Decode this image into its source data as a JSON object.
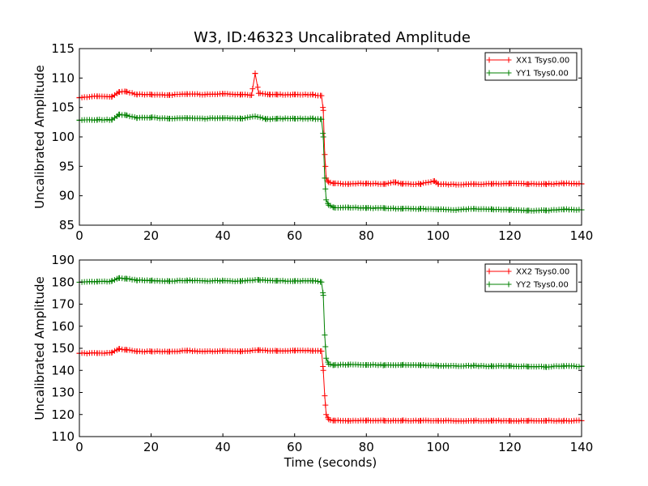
{
  "title": "W3, ID:46323 Uncalibrated Amplitude",
  "chart_data": [
    {
      "type": "line",
      "ylabel": "Uncalibrated Amplitude",
      "xlabel": "",
      "xlim": [
        0,
        140
      ],
      "ylim": [
        85,
        115
      ],
      "xticks": [
        "0",
        "20",
        "40",
        "60",
        "80",
        "100",
        "120",
        "140"
      ],
      "yticks": [
        "85",
        "90",
        "95",
        "100",
        "105",
        "110",
        "115"
      ],
      "legend_position": "top-right",
      "series": [
        {
          "name": "XX1 Tsys0.00",
          "color": "#ff0000",
          "level_before": 107.0,
          "level_after": 92.0,
          "step_time": 68,
          "points": [
            [
              0,
              106.7
            ],
            [
              5,
              106.9
            ],
            [
              9,
              106.8
            ],
            [
              11,
              107.6
            ],
            [
              13,
              107.7
            ],
            [
              16,
              107.2
            ],
            [
              20,
              107.2
            ],
            [
              25,
              107.1
            ],
            [
              30,
              107.3
            ],
            [
              35,
              107.2
            ],
            [
              40,
              107.3
            ],
            [
              45,
              107.2
            ],
            [
              48,
              107.1
            ],
            [
              49,
              110.8
            ],
            [
              50,
              107.4
            ],
            [
              53,
              107.2
            ],
            [
              55,
              107.2
            ],
            [
              60,
              107.2
            ],
            [
              65,
              107.2
            ],
            [
              67.5,
              107.0
            ],
            [
              68,
              104.5
            ],
            [
              68.4,
              97.0
            ],
            [
              68.8,
              93.0
            ],
            [
              69.5,
              92.3
            ],
            [
              71,
              92.1
            ],
            [
              75,
              92.0
            ],
            [
              80,
              92.1
            ],
            [
              85,
              92.0
            ],
            [
              88,
              92.3
            ],
            [
              90,
              92.0
            ],
            [
              95,
              92.0
            ],
            [
              99,
              92.5
            ],
            [
              100,
              92.0
            ],
            [
              105,
              91.9
            ],
            [
              110,
              92.0
            ],
            [
              115,
              92.0
            ],
            [
              120,
              92.1
            ],
            [
              125,
              92.0
            ],
            [
              130,
              92.0
            ],
            [
              135,
              92.1
            ],
            [
              140,
              92.0
            ]
          ]
        },
        {
          "name": "YY1 Tsys0.00",
          "color": "#008000",
          "level_before": 103.0,
          "level_after": 87.9,
          "step_time": 68,
          "points": [
            [
              0,
              102.8
            ],
            [
              5,
              102.9
            ],
            [
              9,
              102.9
            ],
            [
              11,
              103.8
            ],
            [
              13,
              103.7
            ],
            [
              16,
              103.2
            ],
            [
              20,
              103.3
            ],
            [
              25,
              103.1
            ],
            [
              30,
              103.2
            ],
            [
              35,
              103.1
            ],
            [
              40,
              103.2
            ],
            [
              45,
              103.1
            ],
            [
              49,
              103.5
            ],
            [
              52,
              103.0
            ],
            [
              55,
              103.1
            ],
            [
              60,
              103.1
            ],
            [
              65,
              103.1
            ],
            [
              67.5,
              103.0
            ],
            [
              68,
              100.0
            ],
            [
              68.4,
              93.0
            ],
            [
              68.8,
              89.3
            ],
            [
              69.5,
              88.4
            ],
            [
              71,
              88.0
            ],
            [
              75,
              88.0
            ],
            [
              80,
              87.9
            ],
            [
              85,
              87.9
            ],
            [
              90,
              87.8
            ],
            [
              95,
              87.8
            ],
            [
              100,
              87.7
            ],
            [
              105,
              87.6
            ],
            [
              110,
              87.8
            ],
            [
              115,
              87.7
            ],
            [
              120,
              87.6
            ],
            [
              125,
              87.5
            ],
            [
              130,
              87.5
            ],
            [
              135,
              87.7
            ],
            [
              140,
              87.6
            ]
          ]
        }
      ]
    },
    {
      "type": "line",
      "ylabel": "Uncalibrated Amplitude",
      "xlabel": "Time (seconds)",
      "xlim": [
        0,
        140
      ],
      "ylim": [
        110,
        190
      ],
      "xticks": [
        "0",
        "20",
        "40",
        "60",
        "80",
        "100",
        "120",
        "140"
      ],
      "yticks": [
        "110",
        "120",
        "130",
        "140",
        "150",
        "160",
        "170",
        "180",
        "190"
      ],
      "legend_position": "top-right",
      "series": [
        {
          "name": "XX2 Tsys0.00",
          "color": "#ff0000",
          "level_before": 148.9,
          "level_after": 117.2,
          "step_time": 68,
          "points": [
            [
              0,
              147.7
            ],
            [
              5,
              147.8
            ],
            [
              9,
              148.0
            ],
            [
              11,
              149.7
            ],
            [
              13,
              149.4
            ],
            [
              16,
              148.6
            ],
            [
              20,
              148.6
            ],
            [
              25,
              148.5
            ],
            [
              30,
              148.9
            ],
            [
              35,
              148.6
            ],
            [
              40,
              148.8
            ],
            [
              45,
              148.6
            ],
            [
              50,
              149.2
            ],
            [
              55,
              148.8
            ],
            [
              60,
              148.9
            ],
            [
              65,
              148.9
            ],
            [
              67.5,
              148.7
            ],
            [
              68,
              140.0
            ],
            [
              68.4,
              128.5
            ],
            [
              68.8,
              120.0
            ],
            [
              69.5,
              117.8
            ],
            [
              71,
              117.3
            ],
            [
              75,
              117.2
            ],
            [
              80,
              117.3
            ],
            [
              85,
              117.2
            ],
            [
              90,
              117.3
            ],
            [
              95,
              117.2
            ],
            [
              100,
              117.2
            ],
            [
              105,
              117.1
            ],
            [
              110,
              117.2
            ],
            [
              115,
              117.2
            ],
            [
              120,
              117.2
            ],
            [
              125,
              117.1
            ],
            [
              130,
              117.2
            ],
            [
              135,
              117.1
            ],
            [
              140,
              117.2
            ]
          ]
        },
        {
          "name": "YY2 Tsys0.00",
          "color": "#008000",
          "level_before": 180.6,
          "level_after": 142.0,
          "step_time": 68,
          "points": [
            [
              0,
              179.9
            ],
            [
              5,
              180.2
            ],
            [
              9,
              180.4
            ],
            [
              11,
              181.8
            ],
            [
              13,
              181.6
            ],
            [
              16,
              180.8
            ],
            [
              20,
              180.7
            ],
            [
              25,
              180.4
            ],
            [
              30,
              180.8
            ],
            [
              35,
              180.5
            ],
            [
              40,
              180.6
            ],
            [
              45,
              180.4
            ],
            [
              50,
              181.0
            ],
            [
              55,
              180.6
            ],
            [
              60,
              180.5
            ],
            [
              65,
              180.6
            ],
            [
              67.5,
              180.0
            ],
            [
              68,
              174.0
            ],
            [
              68.4,
              156.0
            ],
            [
              68.8,
              145.5
            ],
            [
              69.5,
              142.8
            ],
            [
              71,
              142.4
            ],
            [
              75,
              142.6
            ],
            [
              80,
              142.5
            ],
            [
              85,
              142.4
            ],
            [
              90,
              142.5
            ],
            [
              95,
              142.4
            ],
            [
              100,
              142.1
            ],
            [
              105,
              142.0
            ],
            [
              110,
              142.1
            ],
            [
              115,
              141.9
            ],
            [
              120,
              142.0
            ],
            [
              125,
              141.7
            ],
            [
              130,
              141.6
            ],
            [
              135,
              142.0
            ],
            [
              140,
              141.8
            ]
          ]
        }
      ]
    }
  ]
}
